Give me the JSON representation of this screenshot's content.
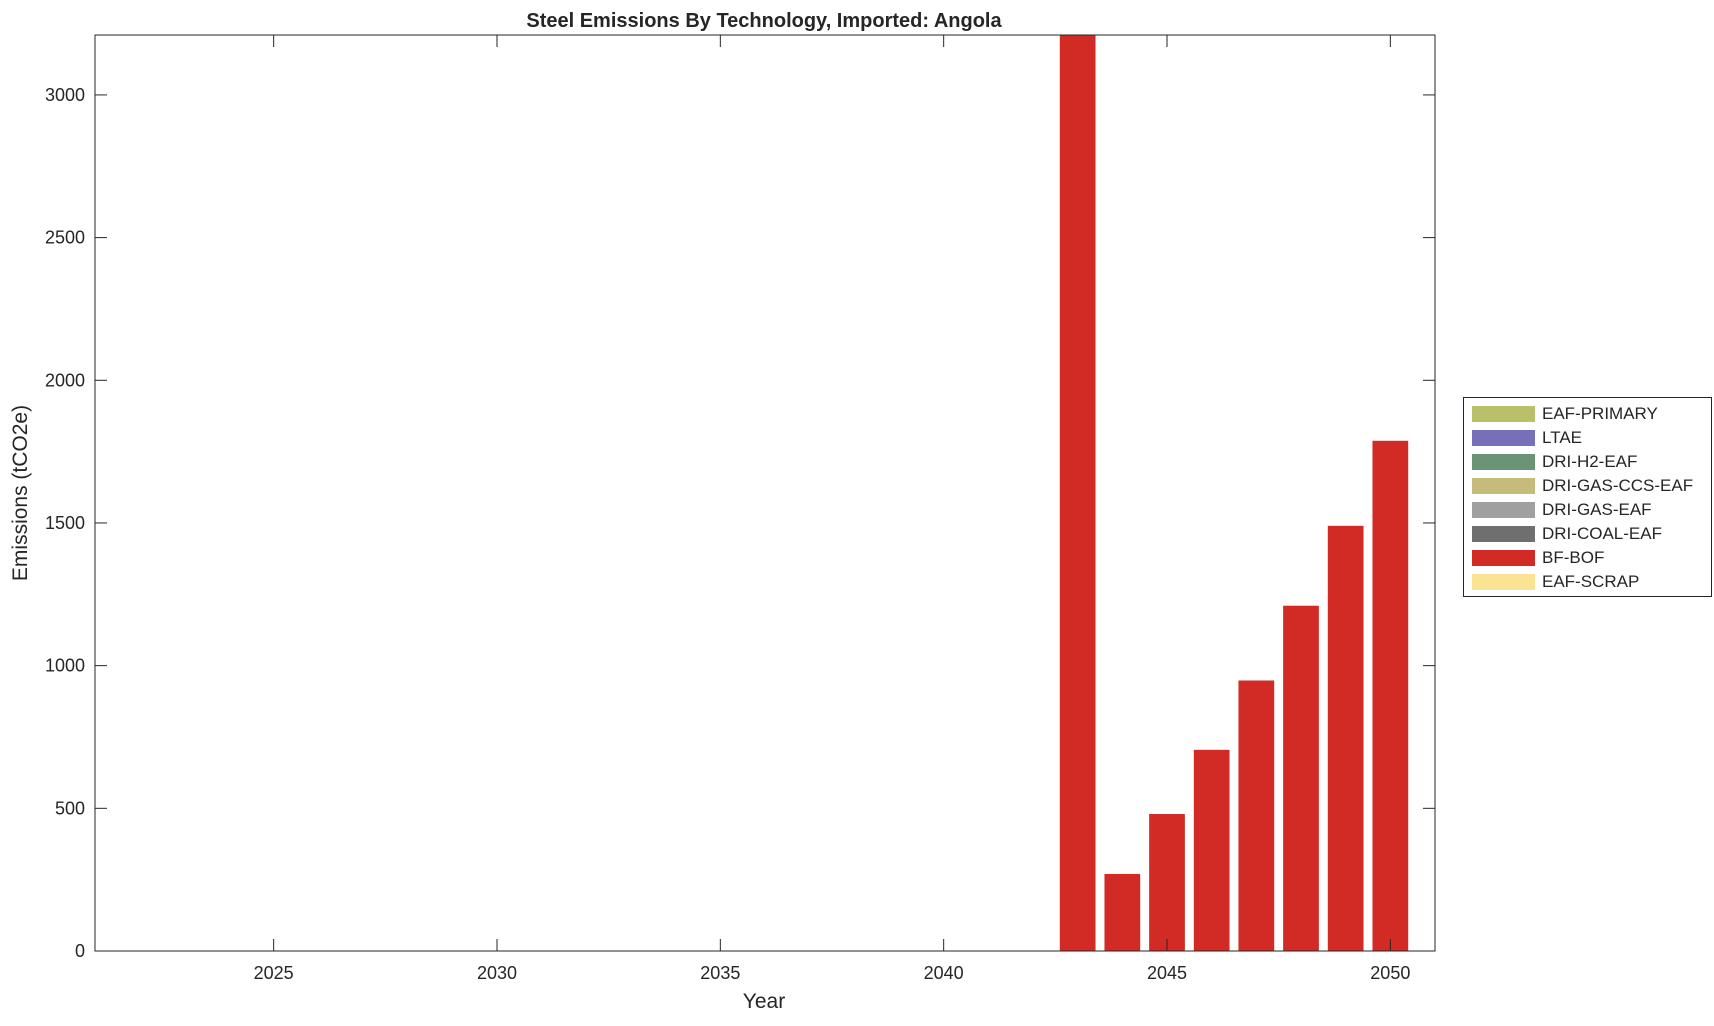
{
  "chart_data": {
    "type": "bar",
    "stacked": true,
    "title": "Steel Emissions By Technology, Imported: Angola",
    "xlabel": "Year",
    "ylabel": "Emissions (tCO2e)",
    "x": [
      2043,
      2044,
      2045,
      2046,
      2047,
      2048,
      2049,
      2050
    ],
    "xlim": [
      2021,
      2051
    ],
    "ylim": [
      0,
      3210
    ],
    "xticks": [
      2025,
      2030,
      2035,
      2040,
      2045,
      2050
    ],
    "yticks": [
      0,
      500,
      1000,
      1500,
      2000,
      2500,
      3000
    ],
    "grid": false,
    "legend_position": "right",
    "series": [
      {
        "name": "EAF-PRIMARY",
        "color": "#b9c06a",
        "values": [
          0,
          0,
          0,
          0,
          0,
          0,
          0,
          0
        ]
      },
      {
        "name": "LTAE",
        "color": "#7670b8",
        "values": [
          0,
          0,
          0,
          0,
          0,
          0,
          0,
          0
        ]
      },
      {
        "name": "DRI-H2-EAF",
        "color": "#6b9376",
        "values": [
          0,
          0,
          0,
          0,
          0,
          0,
          0,
          0
        ]
      },
      {
        "name": "DRI-GAS-CCS-EAF",
        "color": "#c5bb7b",
        "values": [
          0,
          0,
          0,
          0,
          0,
          0,
          0,
          0
        ]
      },
      {
        "name": "DRI-GAS-EAF",
        "color": "#a0a0a0",
        "values": [
          0,
          0,
          0,
          0,
          0,
          0,
          0,
          0
        ]
      },
      {
        "name": "DRI-COAL-EAF",
        "color": "#6f6f6f",
        "values": [
          0,
          0,
          0,
          0,
          0,
          0,
          0,
          0
        ]
      },
      {
        "name": "BF-BOF",
        "color": "#d22b26",
        "values": [
          3210,
          270,
          480,
          705,
          948,
          1210,
          1490,
          1788
        ]
      },
      {
        "name": "EAF-SCRAP",
        "color": "#fbe394",
        "values": [
          0,
          0,
          0,
          0,
          0,
          0,
          0,
          0
        ]
      }
    ]
  }
}
